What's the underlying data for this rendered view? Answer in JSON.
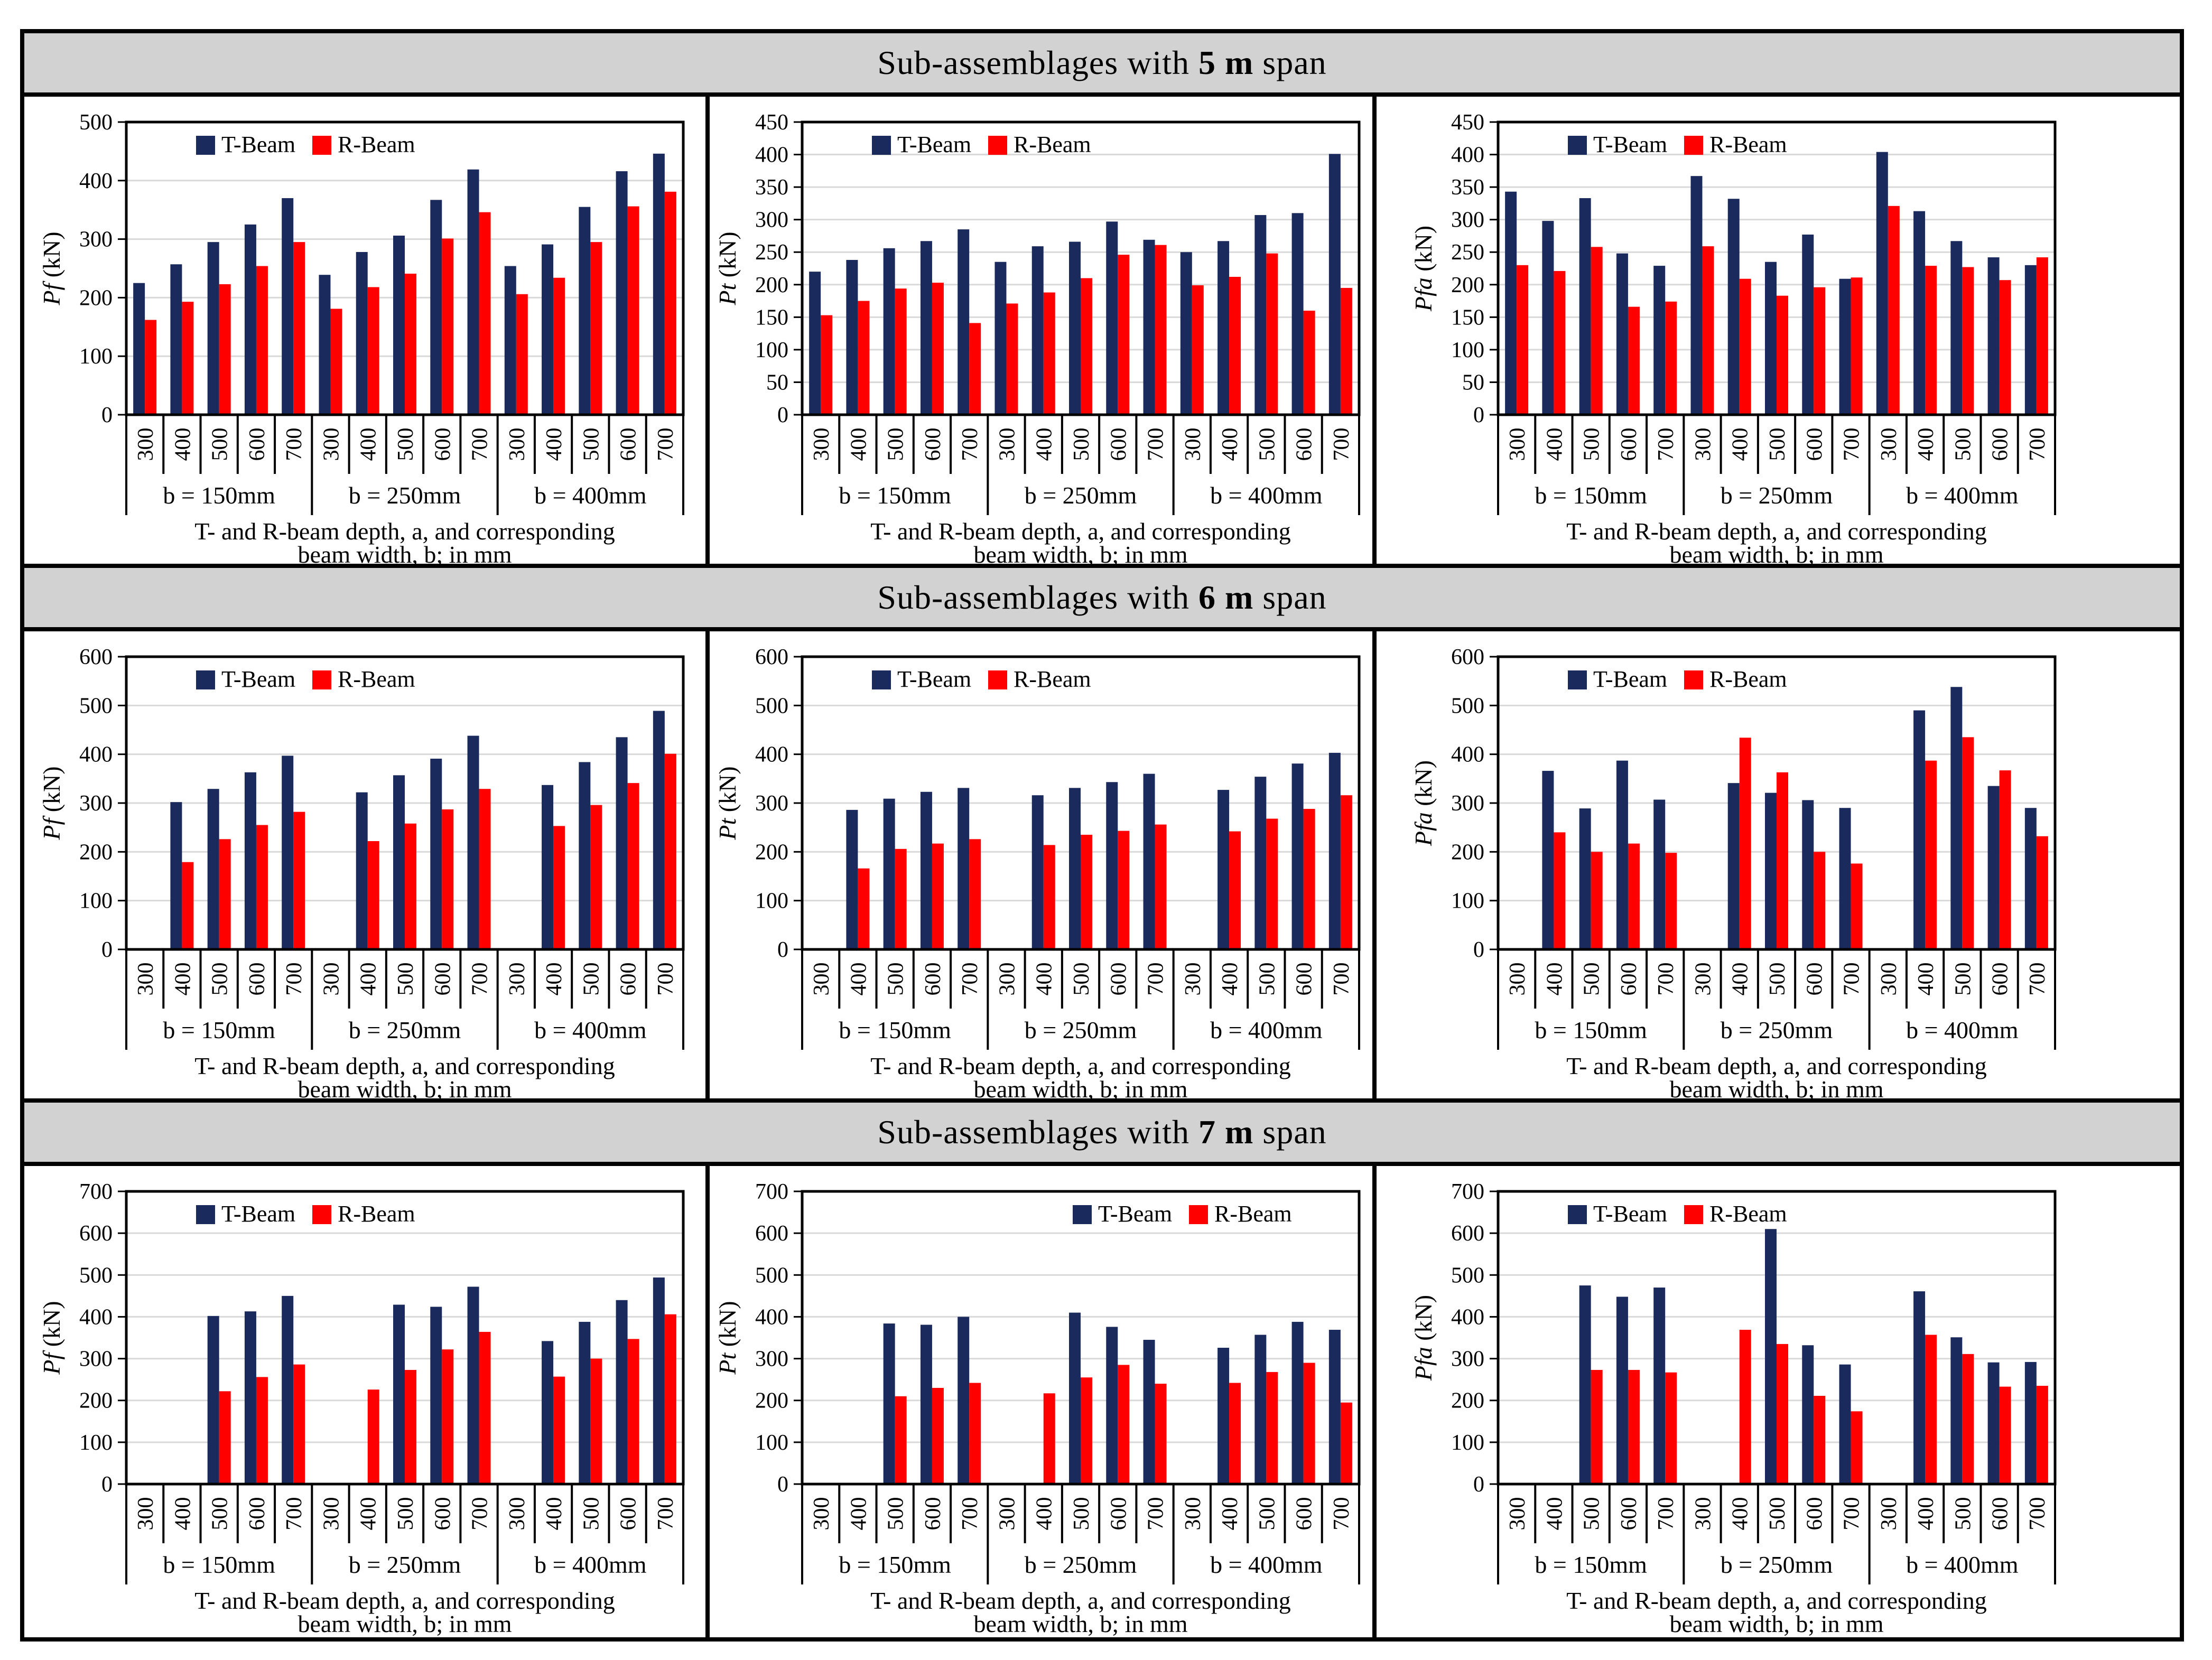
{
  "shared": {
    "legend": {
      "t_label": "T-Beam",
      "r_label": "R-Beam"
    },
    "colors": {
      "t_beam": "#1b2a5c",
      "r_beam": "#ff0000",
      "gridline": "#d9d9d9",
      "title_band": "#d2d2d2",
      "border": "#000000"
    },
    "group_labels": [
      "b = 150mm",
      "b = 250mm",
      "b = 400mm"
    ],
    "categories": [
      "300",
      "400",
      "500",
      "600",
      "700"
    ],
    "x_caption": [
      "T- and R-beam depth, a, and corresponding",
      "beam width, b; in mm"
    ]
  },
  "sections": [
    {
      "title_prefix": "Sub-assemblages with ",
      "title_bold": "5 m",
      "title_suffix": " span",
      "chart_indexes": [
        0,
        1,
        2
      ]
    },
    {
      "title_prefix": "Sub-assemblages with ",
      "title_bold": "6 m",
      "title_suffix": " span",
      "chart_indexes": [
        3,
        4,
        5
      ]
    },
    {
      "title_prefix": "Sub-assemblages with ",
      "title_bold": "7 m",
      "title_suffix": " span",
      "chart_indexes": [
        6,
        7,
        8
      ]
    }
  ],
  "chart_data": [
    {
      "id": "pf-5m",
      "type": "bar",
      "section": "Sub-assemblages with 5 m span",
      "ylabel": "Pf (kN)",
      "ylabel_var": "Pf",
      "ylabel_unit": " (kN)",
      "ylim": [
        0,
        500
      ],
      "ymax": 500,
      "ystep": 100,
      "legend_pos": "left",
      "series": [
        {
          "name": "T-Beam",
          "values": [
            [
              225,
              257,
              295,
              325,
              370
            ],
            [
              239,
              278,
              306,
              367,
              419
            ],
            [
              254,
              291,
              355,
              416,
              446
            ]
          ]
        },
        {
          "name": "R-Beam",
          "values": [
            [
              162,
              193,
              223,
              254,
              295
            ],
            [
              181,
              218,
              241,
              301,
              346
            ],
            [
              206,
              234,
              295,
              356,
              381
            ]
          ]
        }
      ]
    },
    {
      "id": "pt-5m",
      "type": "bar",
      "section": "Sub-assemblages with 5 m span",
      "ylabel": "Pt (kN)",
      "ylabel_var": "Pt",
      "ylabel_unit": " (kN)",
      "ylim": [
        0,
        450
      ],
      "ymax": 450,
      "ystep": 50,
      "legend_pos": "left",
      "series": [
        {
          "name": "T-Beam",
          "values": [
            [
              220,
              238,
              256,
              267,
              285
            ],
            [
              235,
              259,
              266,
              297,
              269
            ],
            [
              250,
              267,
              307,
              310,
              401
            ]
          ]
        },
        {
          "name": "R-Beam",
          "values": [
            [
              153,
              175,
              194,
              203,
              141
            ],
            [
              171,
              188,
              210,
              246,
              261
            ],
            [
              199,
              212,
              248,
              160,
              195
            ]
          ]
        }
      ]
    },
    {
      "id": "pfa-5m",
      "type": "bar",
      "section": "Sub-assemblages with 5 m span",
      "ylabel": "Pfa (kN)",
      "ylabel_var": "Pfa",
      "ylabel_unit": " (kN)",
      "ylim": [
        0,
        450
      ],
      "ymax": 450,
      "ystep": 50,
      "legend_pos": "left",
      "series": [
        {
          "name": "T-Beam",
          "values": [
            [
              343,
              298,
              333,
              248,
              229
            ],
            [
              367,
              332,
              235,
              277,
              209
            ],
            [
              404,
              313,
              267,
              242,
              230
            ]
          ]
        },
        {
          "name": "R-Beam",
          "values": [
            [
              230,
              221,
              258,
              166,
              174
            ],
            [
              259,
              209,
              183,
              196,
              211
            ],
            [
              321,
              229,
              227,
              207,
              242
            ]
          ]
        }
      ]
    },
    {
      "id": "pf-6m",
      "type": "bar",
      "section": "Sub-assemblages with 6 m span",
      "ylabel": "Pf (kN)",
      "ylabel_var": "Pf",
      "ylabel_unit": " (kN)",
      "ylim": [
        0,
        600
      ],
      "ymax": 600,
      "ystep": 100,
      "legend_pos": "left",
      "series": [
        {
          "name": "T-Beam",
          "values": [
            [
              null,
              302,
              329,
              363,
              397
            ],
            [
              null,
              322,
              357,
              391,
              438
            ],
            [
              null,
              337,
              384,
              435,
              489
            ]
          ]
        },
        {
          "name": "R-Beam",
          "values": [
            [
              null,
              179,
              226,
              255,
              282
            ],
            [
              null,
              222,
              258,
              287,
              329
            ],
            [
              null,
              253,
              296,
              341,
              401
            ]
          ]
        }
      ]
    },
    {
      "id": "pt-6m",
      "type": "bar",
      "section": "Sub-assemblages with 6 m span",
      "ylabel": "Pt (kN)",
      "ylabel_var": "Pt",
      "ylabel_unit": " (kN)",
      "ylim": [
        0,
        600
      ],
      "ymax": 600,
      "ystep": 100,
      "legend_pos": "left",
      "series": [
        {
          "name": "T-Beam",
          "values": [
            [
              null,
              286,
              309,
              323,
              331
            ],
            [
              null,
              316,
              331,
              343,
              360
            ],
            [
              null,
              327,
              354,
              381,
              403
            ]
          ]
        },
        {
          "name": "R-Beam",
          "values": [
            [
              null,
              166,
              206,
              217,
              226
            ],
            [
              null,
              214,
              235,
              243,
              256
            ],
            [
              null,
              242,
              268,
              288,
              316
            ]
          ]
        }
      ]
    },
    {
      "id": "pfa-6m",
      "type": "bar",
      "section": "Sub-assemblages with 6 m span",
      "ylabel": "Pfa (kN)",
      "ylabel_var": "Pfa",
      "ylabel_unit": " (kN)",
      "ylim": [
        0,
        600
      ],
      "ymax": 600,
      "ystep": 100,
      "legend_pos": "left",
      "series": [
        {
          "name": "T-Beam",
          "values": [
            [
              null,
              366,
              289,
              387,
              307
            ],
            [
              null,
              341,
              321,
              306,
              290
            ],
            [
              null,
              490,
              538,
              335,
              290
            ]
          ]
        },
        {
          "name": "R-Beam",
          "values": [
            [
              null,
              240,
              200,
              217,
              198
            ],
            [
              null,
              434,
              363,
              200,
              176
            ],
            [
              null,
              387,
              435,
              367,
              232
            ]
          ]
        }
      ]
    },
    {
      "id": "pf-7m",
      "type": "bar",
      "section": "Sub-assemblages with 7 m span",
      "ylabel": "Pf (kN)",
      "ylabel_var": "Pf",
      "ylabel_unit": " (kN)",
      "ylim": [
        0,
        700
      ],
      "ymax": 700,
      "ystep": 100,
      "legend_pos": "left",
      "series": [
        {
          "name": "T-Beam",
          "values": [
            [
              null,
              null,
              402,
              413,
              450
            ],
            [
              null,
              null,
              429,
              424,
              472
            ],
            [
              null,
              342,
              388,
              440,
              494
            ]
          ]
        },
        {
          "name": "R-Beam",
          "values": [
            [
              null,
              null,
              222,
              256,
              286
            ],
            [
              null,
              226,
              273,
              322,
              364
            ],
            [
              null,
              257,
              300,
              347,
              406
            ]
          ]
        }
      ]
    },
    {
      "id": "pt-7m",
      "type": "bar",
      "section": "Sub-assemblages with 7 m span",
      "ylabel": "Pt (kN)",
      "ylabel_var": "Pt",
      "ylabel_unit": " (kN)",
      "ylim": [
        0,
        700
      ],
      "ymax": 700,
      "ystep": 100,
      "legend_pos": "right",
      "series": [
        {
          "name": "T-Beam",
          "values": [
            [
              null,
              null,
              384,
              381,
              400
            ],
            [
              null,
              null,
              410,
              376,
              345
            ],
            [
              null,
              326,
              357,
              388,
              369
            ]
          ]
        },
        {
          "name": "R-Beam",
          "values": [
            [
              null,
              null,
              210,
              230,
              242
            ],
            [
              null,
              217,
              255,
              285,
              240
            ],
            [
              null,
              242,
              268,
              290,
              195
            ]
          ]
        }
      ]
    },
    {
      "id": "pfa-7m",
      "type": "bar",
      "section": "Sub-assemblages with 7 m span",
      "ylabel": "Pfa (kN)",
      "ylabel_var": "Pfa",
      "ylabel_unit": " (kN)",
      "ylim": [
        0,
        700
      ],
      "ymax": 700,
      "ystep": 100,
      "legend_pos": "left",
      "series": [
        {
          "name": "T-Beam",
          "values": [
            [
              null,
              null,
              475,
              448,
              470
            ],
            [
              null,
              null,
              610,
              332,
              286
            ],
            [
              null,
              461,
              351,
              291,
              292
            ]
          ]
        },
        {
          "name": "R-Beam",
          "values": [
            [
              null,
              null,
              273,
              273,
              267
            ],
            [
              null,
              369,
              335,
              211,
              174
            ],
            [
              null,
              357,
              311,
              233,
              235
            ]
          ]
        }
      ]
    }
  ]
}
